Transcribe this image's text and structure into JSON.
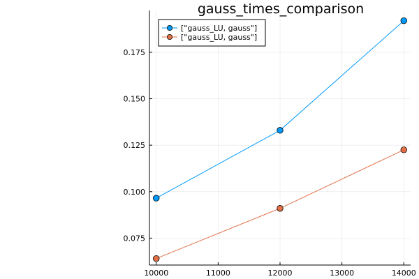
{
  "chart_data": {
    "type": "line",
    "title": "gauss_times_comparison",
    "xlabel": "",
    "ylabel": "",
    "x": [
      10000,
      12000,
      14000
    ],
    "xlim": [
      9890,
      14110
    ],
    "ylim": [
      0.0605,
      0.1975
    ],
    "x_ticks": [
      10000,
      11000,
      12000,
      13000,
      14000
    ],
    "y_ticks": [
      0.075,
      0.1,
      0.125,
      0.15,
      0.175
    ],
    "x_tick_labels": [
      "10000",
      "11000",
      "12000",
      "13000",
      "14000"
    ],
    "y_tick_labels": [
      "0.075",
      "0.100",
      "0.125",
      "0.150",
      "0.175"
    ],
    "grid": true,
    "legend_position": "top-left",
    "series": [
      {
        "name": "[\"gauss_LU, gauss\"]",
        "color": "#009AFA",
        "values": [
          0.0965,
          0.133,
          0.192
        ]
      },
      {
        "name": "[\"gauss_LU, gauss\"]",
        "color": "#E26F46",
        "values": [
          0.064,
          0.091,
          0.1225
        ]
      }
    ]
  }
}
